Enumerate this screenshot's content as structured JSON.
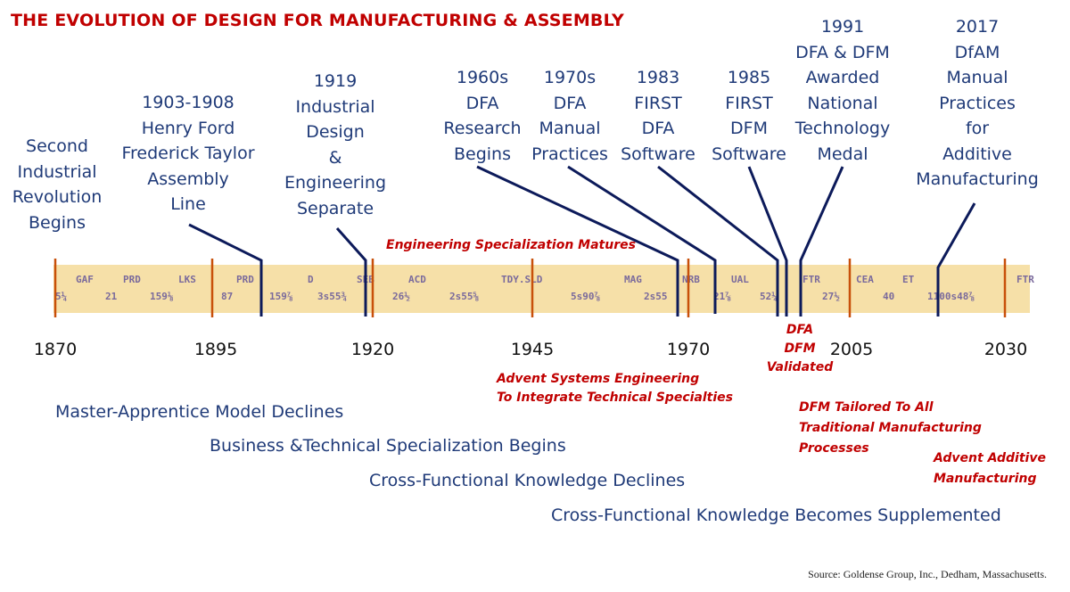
{
  "title": "THE EVOLUTION OF DESIGN FOR MANUFACTURING & ASSEMBLY",
  "colors": {
    "title_red": "#c00000",
    "event_blue": "#1f3a78",
    "tape": "#f6e0a8",
    "year_marker": "#c8500a",
    "leader": "#0c1a5a"
  },
  "events": [
    {
      "lines": [
        "Second",
        "Industrial",
        "Revolution",
        "Begins"
      ]
    },
    {
      "lines": [
        "1903-1908",
        "Henry Ford",
        "Frederick Taylor",
        "Assembly",
        "Line"
      ]
    },
    {
      "lines": [
        "1919",
        "Industrial",
        "Design",
        "&",
        "Engineering",
        "Separate"
      ]
    },
    {
      "lines": [
        "1960s",
        "DFA",
        "Research",
        "Begins"
      ]
    },
    {
      "lines": [
        "1970s",
        "DFA",
        "Manual",
        "Practices"
      ]
    },
    {
      "lines": [
        "1983",
        "FIRST",
        "DFA",
        "Software"
      ]
    },
    {
      "lines": [
        "1985",
        "FIRST",
        "DFM",
        "Software"
      ]
    },
    {
      "lines": [
        "1991",
        "DFA & DFM",
        "Awarded",
        "National",
        "Technology",
        "Medal"
      ]
    },
    {
      "lines": [
        "2017",
        "DfAM",
        "Manual",
        "Practices",
        "for",
        "Additive",
        "Manufacturing"
      ]
    }
  ],
  "ticker": {
    "symbols": [
      "GAF",
      "PRD",
      "LKS",
      "PRD",
      "D",
      "SEB",
      "ACD",
      "TDY.SLD",
      "MAG",
      "NRB",
      "UAL",
      "FTR",
      "CEA",
      "ET",
      "FTR"
    ],
    "prices": [
      "5¼",
      "21",
      "159⅛",
      "87",
      "159⅞",
      "3s55¾",
      "26½",
      "2s55⅝",
      "5s90⅞",
      "2s55",
      "21⅞",
      "52¼",
      "27½",
      "40",
      "1100s48⅞"
    ]
  },
  "years": [
    "1870",
    "1895",
    "1920",
    "1945",
    "1970",
    "2005",
    "2030"
  ],
  "annotations": {
    "eng_spec": "Engineering Specialization Matures",
    "advent_se": [
      "Advent Systems Engineering",
      "To Integrate Technical Specialties"
    ],
    "validated": [
      "DFA",
      "DFM",
      "Validated"
    ],
    "dfm_tailored": [
      "DFM Tailored To All",
      "Traditional Manufacturing",
      "Processes"
    ],
    "advent_am": [
      "Advent Additive",
      "Manufacturing"
    ]
  },
  "eras": [
    "Master-Apprentice Model Declines",
    "Business &Technical Specialization Begins",
    "Cross-Functional Knowledge Declines",
    "Cross-Functional Knowledge Becomes Supplemented"
  ],
  "source": "Source:  Goldense Group, Inc., Dedham, Massachusetts."
}
